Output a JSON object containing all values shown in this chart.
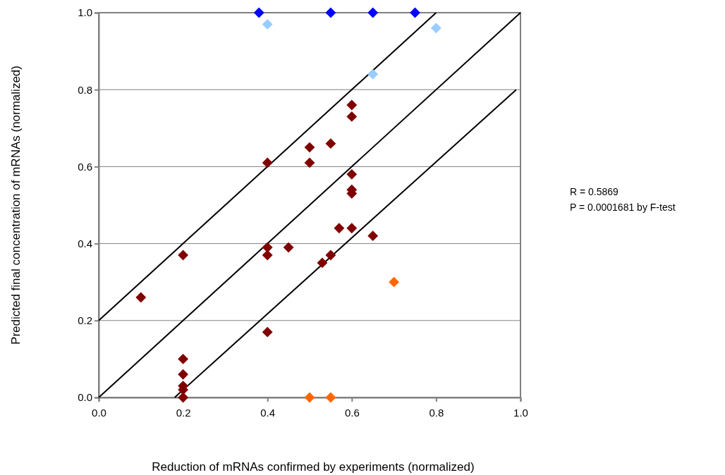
{
  "chart_data": {
    "type": "scatter",
    "xlabel": "Reduction of mRNAs confirmed by experiments (normalized)",
    "ylabel": "Predicted final concentration of mRNAs (normalized)",
    "xlim": [
      0,
      1
    ],
    "ylim": [
      0,
      1
    ],
    "xticks": [
      {
        "value": 0,
        "label": "0.0"
      },
      {
        "value": 0.2,
        "label": "0.2"
      },
      {
        "value": 0.4,
        "label": "0.4"
      },
      {
        "value": 0.6,
        "label": "0.6"
      },
      {
        "value": 0.8,
        "label": "0.8"
      },
      {
        "value": 1,
        "label": "1.0"
      }
    ],
    "yticks": [
      {
        "value": 0,
        "label": "0.0"
      },
      {
        "value": 0.2,
        "label": "0.2"
      },
      {
        "value": 0.4,
        "label": "0.4"
      },
      {
        "value": 0.6,
        "label": "0.6"
      },
      {
        "value": 0.8,
        "label": "0.8"
      },
      {
        "value": 1,
        "label": "1.0"
      }
    ],
    "grid": "y",
    "marker": "diamond",
    "annotations": [
      "R = 0.5869",
      "P = 0.0001681 by F-test"
    ],
    "series": [
      {
        "type": "line",
        "marker": "none",
        "color": "#000000",
        "x": [
          0,
          0.8
        ],
        "values": [
          0.2,
          1
        ]
      },
      {
        "type": "line",
        "marker": "none",
        "color": "#000000",
        "x": [
          0,
          1
        ],
        "values": [
          0,
          1
        ]
      },
      {
        "type": "line",
        "marker": "none",
        "color": "#000000",
        "x": [
          0.18,
          0.99
        ],
        "values": [
          0,
          0.8
        ]
      },
      {
        "color": "#800000",
        "x": [
          0.1,
          0.2,
          0.2,
          0.2,
          0.2,
          0.2,
          0.2,
          0.4,
          0.4,
          0.4,
          0.4,
          0.45,
          0.5,
          0.5,
          0.55,
          0.55,
          0.53,
          0.57,
          0.6,
          0.6,
          0.6,
          0.6,
          0.6,
          0.6,
          0.65
        ],
        "values": [
          0.26,
          0.37,
          0.1,
          0.06,
          0.03,
          0.02,
          0,
          0.61,
          0.39,
          0.37,
          0.17,
          0.39,
          0.65,
          0.61,
          0.66,
          0.37,
          0.35,
          0.44,
          0.76,
          0.73,
          0.58,
          0.54,
          0.53,
          0.44,
          0.42
        ]
      },
      {
        "color": "#0000ff",
        "x": [
          0.38,
          0.55,
          0.65,
          0.75
        ],
        "values": [
          1,
          1,
          1,
          1
        ]
      },
      {
        "color": "#99ccff",
        "x": [
          0.4,
          0.65,
          0.8
        ],
        "values": [
          0.97,
          0.84,
          0.96
        ]
      },
      {
        "color": "#ff6600",
        "x": [
          0.5,
          0.55,
          0.7
        ],
        "values": [
          0,
          0,
          0.3
        ]
      }
    ]
  }
}
